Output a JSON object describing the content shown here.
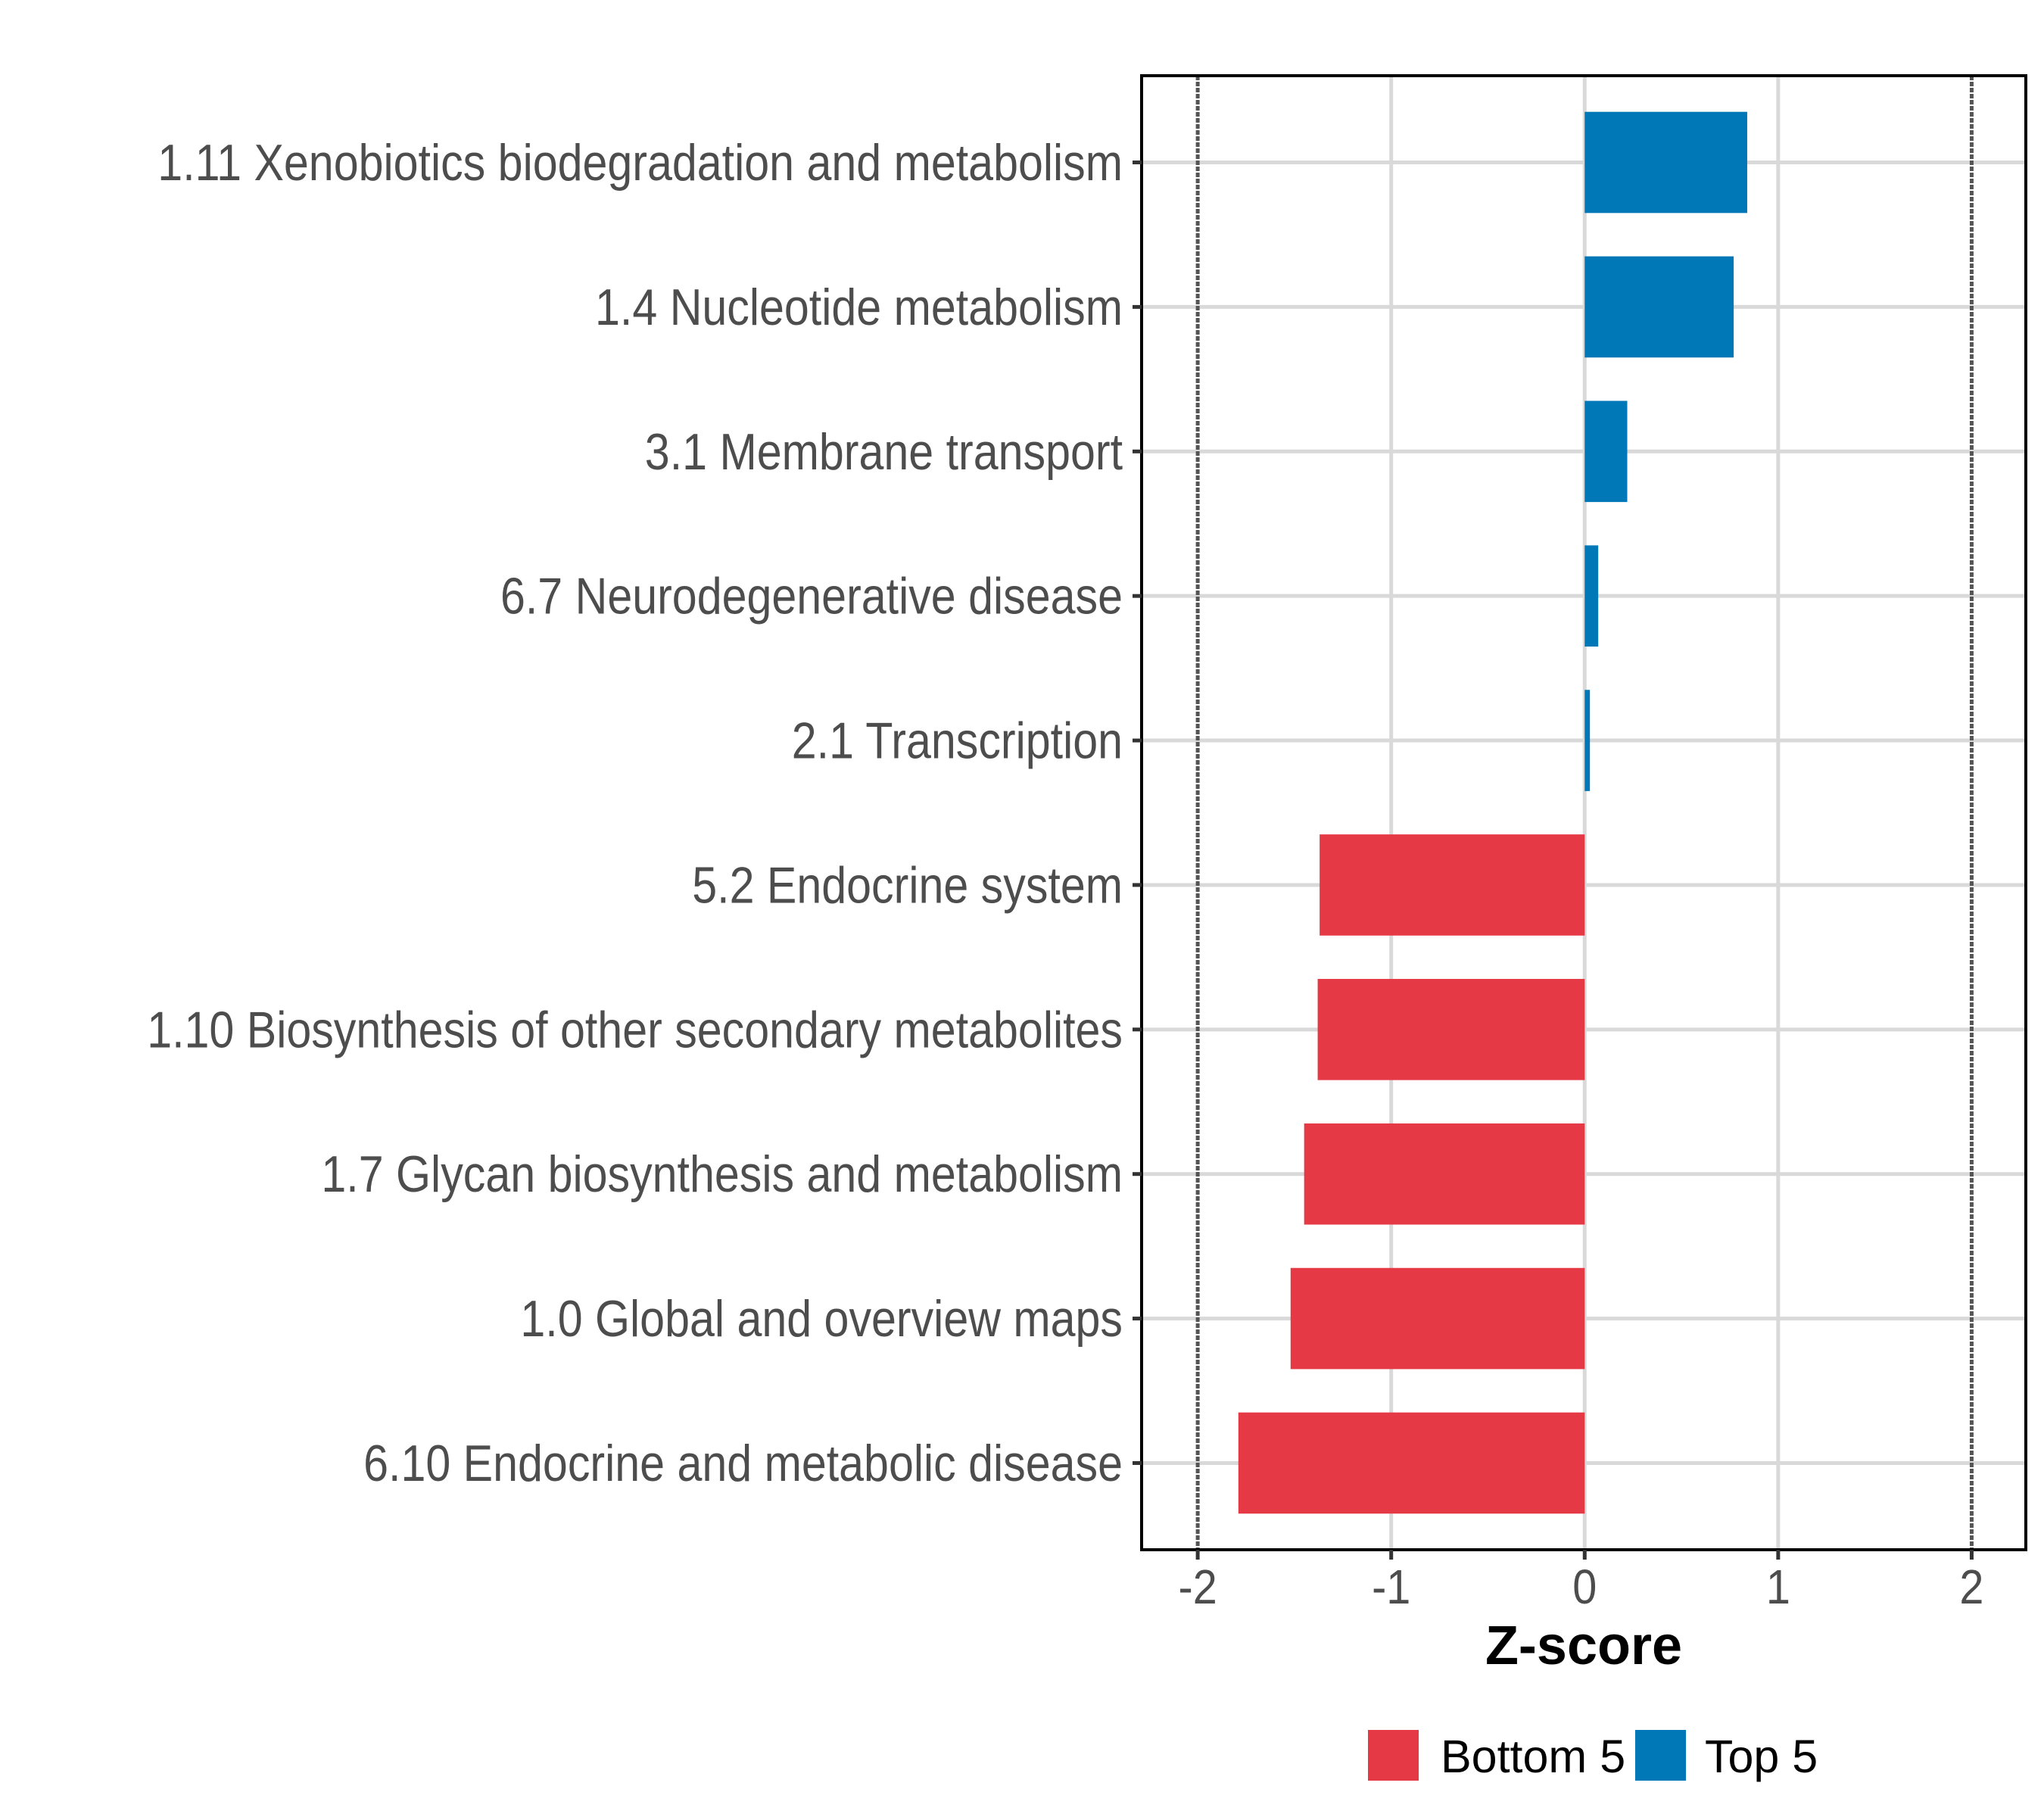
{
  "chart_data": {
    "type": "bar",
    "orientation": "horizontal",
    "title": "",
    "xlabel": "Z-score",
    "ylabel": "",
    "xlim": [
      -2.29,
      2.28
    ],
    "xticks": [
      -2,
      -1,
      0,
      1,
      2
    ],
    "xtick_labels": [
      "-2",
      "-1",
      "0",
      "1",
      "2"
    ],
    "reference_lines": [
      -2,
      2
    ],
    "grid": true,
    "legend_position": "bottom",
    "categories": [
      "1.11 Xenobiotics biodegradation and metabolism",
      "1.4 Nucleotide metabolism",
      "3.1 Membrane transport",
      "6.7 Neurodegenerative disease",
      "2.1 Transcription",
      "5.2 Endocrine system",
      "1.10 Biosynthesis of other secondary metabolites",
      "1.7 Glycan biosynthesis and metabolism",
      "1.0 Global and overview maps",
      "6.10 Endocrine and metabolic disease"
    ],
    "values": [
      0.84,
      0.77,
      0.22,
      0.07,
      0.027,
      -1.37,
      -1.38,
      -1.45,
      -1.52,
      -1.79
    ],
    "groups": [
      "Top 5",
      "Top 5",
      "Top 5",
      "Top 5",
      "Top 5",
      "Bottom 5",
      "Bottom 5",
      "Bottom 5",
      "Bottom 5",
      "Bottom 5"
    ],
    "series": [
      {
        "name": "Bottom 5",
        "color": "#E63946"
      },
      {
        "name": "Top 5",
        "color": "#0077B6"
      }
    ]
  }
}
